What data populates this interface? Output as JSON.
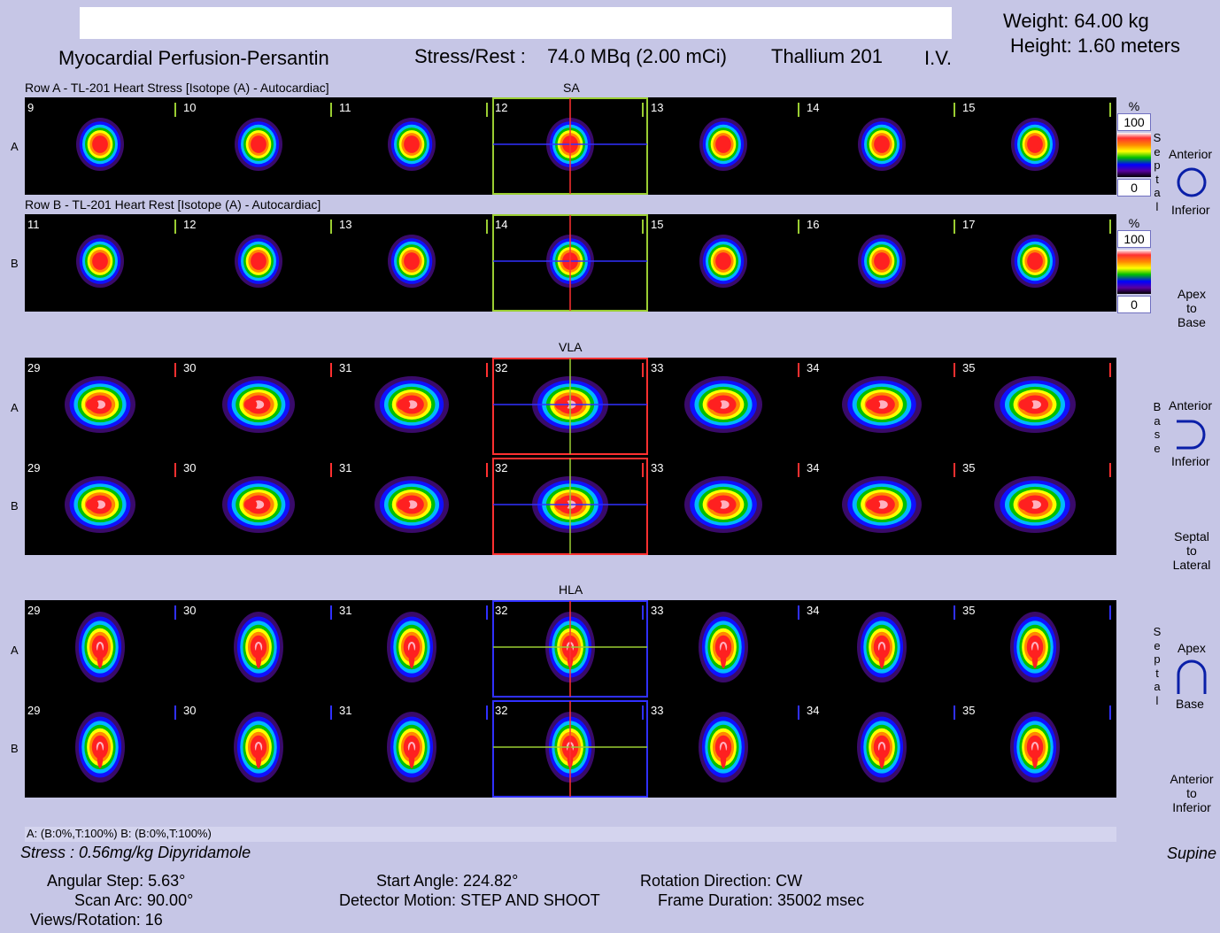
{
  "header": {
    "study_title": "Myocardial Perfusion-Persantin",
    "dose_label": "Stress/Rest :",
    "dose_value": "74.0 MBq (2.00 mCi)",
    "isotope": "Thallium 201",
    "route": "I.V.",
    "weight": "Weight: 64.00 kg",
    "height": "Height: 1.60 meters"
  },
  "sections": {
    "sa": "SA",
    "vla": "VLA",
    "hla": "HLA"
  },
  "rows": {
    "row_a_caption": "Row A - TL-201 Heart Stress [Isotope  (A) - Autocardiac]",
    "row_b_caption": "Row B - TL-201 Heart Rest [Isotope  (A) - Autocardiac]",
    "letter_a": "A",
    "letter_b": "B"
  },
  "slice_numbers": {
    "sa_a": [
      "9",
      "10",
      "11",
      "12",
      "13",
      "14",
      "15"
    ],
    "sa_b": [
      "11",
      "12",
      "13",
      "14",
      "15",
      "16",
      "17"
    ],
    "vla_a": [
      "29",
      "30",
      "31",
      "32",
      "33",
      "34",
      "35"
    ],
    "vla_b": [
      "29",
      "30",
      "31",
      "32",
      "33",
      "34",
      "35"
    ],
    "hla_a": [
      "29",
      "30",
      "31",
      "32",
      "33",
      "34",
      "35"
    ],
    "hla_b": [
      "29",
      "30",
      "31",
      "32",
      "33",
      "34",
      "35"
    ]
  },
  "scales": {
    "a": {
      "unit": "%",
      "max": "100",
      "min": "0"
    },
    "b": {
      "unit": "%",
      "max": "100",
      "min": "0"
    }
  },
  "orientation": {
    "sa_vertical": [
      "S",
      "e",
      "p",
      "t",
      "a",
      "l"
    ],
    "sa_top": "Anterior",
    "sa_bottom": "Inferior",
    "sa_direction": [
      "Apex",
      "to",
      "Base"
    ],
    "vla_vertical": [
      "B",
      "a",
      "s",
      "e"
    ],
    "vla_top": "Anterior",
    "vla_bottom": "Inferior",
    "vla_direction": [
      "Septal",
      "to",
      "Lateral"
    ],
    "hla_vertical": [
      "S",
      "e",
      "p",
      "t",
      "a",
      "l"
    ],
    "hla_top": "Apex",
    "hla_bottom": "Base",
    "hla_direction": [
      "Anterior",
      "to",
      "Inferior"
    ]
  },
  "footer": {
    "threshold": "A: (B:0%,T:100%)    B: (B:0%,T:100%)",
    "stress": "Stress : 0.56mg/kg Dipyridamole",
    "position": "Supine",
    "angular_step": "Angular Step: 5.63°",
    "scan_arc": "Scan Arc: 90.00°",
    "views_rotation": "Views/Rotation: 16",
    "start_angle": "Start Angle: 224.82°",
    "detector_motion": "Detector Motion: STEP AND SHOOT",
    "rotation_direction": "Rotation Direction: CW",
    "frame_duration": "Frame Duration: 35002 msec"
  },
  "colors": {
    "background": "#c6c6e6",
    "sa_marker": "#9acd32",
    "vla_marker": "#ff3030",
    "hla_marker": "#3030ff"
  }
}
